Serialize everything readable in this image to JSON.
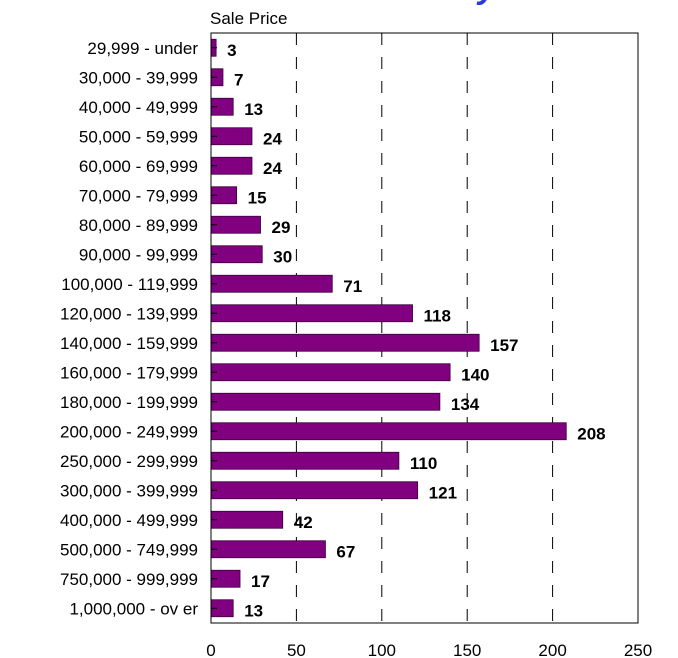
{
  "colors": {
    "bar": "#800080",
    "bar_edge": "#3a003a",
    "title_fragment": "#2a3bd6"
  },
  "title_fragment": "y",
  "chart_data": {
    "type": "bar",
    "orientation": "horizontal",
    "xlabel": "Sale Price",
    "categories": [
      "29,999 - under",
      "30,000 - 39,999",
      "40,000 - 49,999",
      "50,000 - 59,999",
      "60,000 - 69,999",
      "70,000 - 79,999",
      "80,000 - 89,999",
      "90,000 - 99,999",
      "100,000 - 119,999",
      "120,000 - 139,999",
      "140,000 - 159,999",
      "160,000 - 179,999",
      "180,000 - 199,999",
      "200,000 - 249,999",
      "250,000 - 299,999",
      "300,000 - 399,999",
      "400,000 - 499,999",
      "500,000 - 749,999",
      "750,000 - 999,999",
      "1,000,000 - ov er"
    ],
    "values": [
      3,
      7,
      13,
      24,
      24,
      15,
      29,
      30,
      71,
      118,
      157,
      140,
      134,
      208,
      110,
      121,
      42,
      67,
      17,
      13
    ],
    "xlim": [
      0,
      250
    ],
    "xticks": [
      0,
      50,
      100,
      150,
      200,
      250
    ],
    "grid": "vertical dashed"
  }
}
